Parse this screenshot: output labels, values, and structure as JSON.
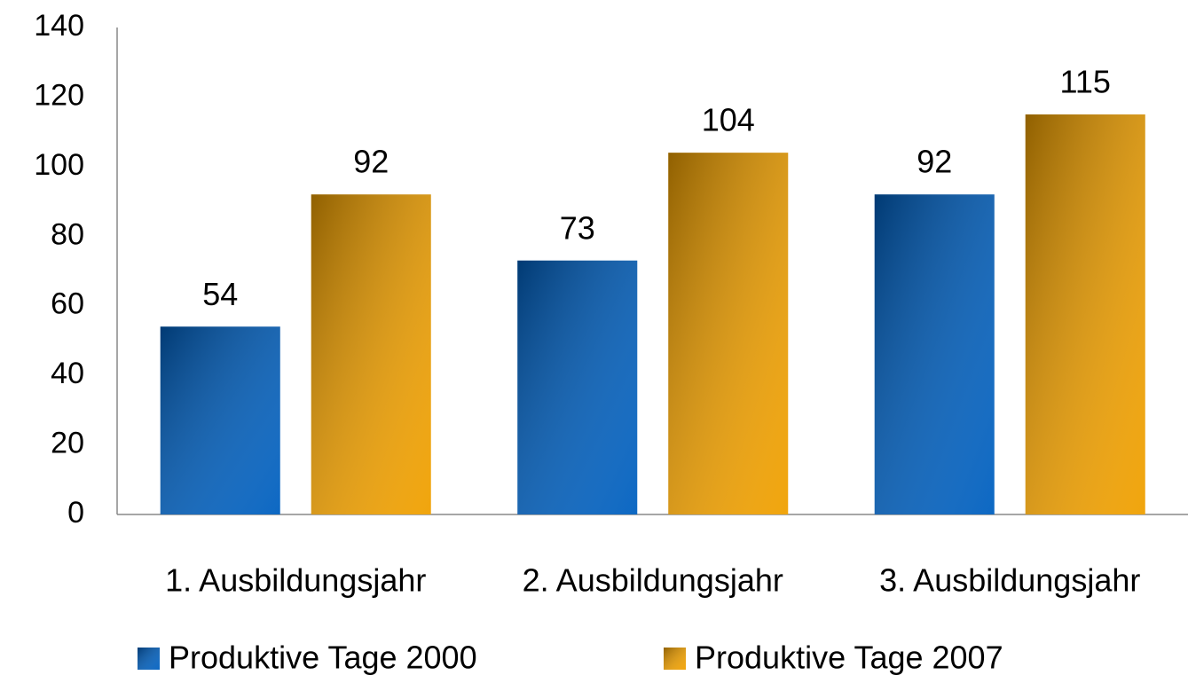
{
  "chart_data": {
    "type": "bar",
    "categories": [
      "1. Ausbildungsjahr",
      "2. Ausbildungsjahr",
      "3. Ausbildungsjahr"
    ],
    "series": [
      {
        "name": "Produktive Tage 2000",
        "color": "#0060c0",
        "values": [
          54,
          73,
          92
        ]
      },
      {
        "name": "Produktive Tage 2007",
        "color": "#f0a000",
        "values": [
          92,
          104,
          115
        ]
      }
    ],
    "ylim": [
      0,
      140
    ],
    "yticks": [
      0,
      20,
      40,
      60,
      80,
      100,
      120,
      140
    ],
    "grid": false
  }
}
